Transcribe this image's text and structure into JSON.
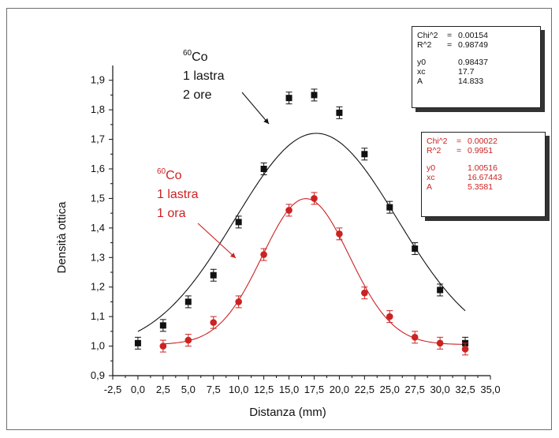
{
  "chart_data": {
    "type": "scatter",
    "xlabel": "Distanza (mm)",
    "ylabel": "Densità ottica",
    "xlim": [
      -2.5,
      35.0
    ],
    "ylim": [
      0.9,
      1.95
    ],
    "x_ticks": [
      "-2,5",
      "0,0",
      "2,5",
      "5,0",
      "7,5",
      "10,0",
      "12,5",
      "15,0",
      "17,5",
      "20,0",
      "22,5",
      "25,0",
      "27,5",
      "30,0",
      "32,5",
      "35,0"
    ],
    "x_tick_values": [
      -2.5,
      0,
      2.5,
      5,
      7.5,
      10,
      12.5,
      15,
      17.5,
      20,
      22.5,
      25,
      27.5,
      30,
      32.5,
      35
    ],
    "y_ticks": [
      "0,9",
      "1,0",
      "1,1",
      "1,2",
      "1,3",
      "1,4",
      "1,5",
      "1,6",
      "1,7",
      "1,8",
      "1,9"
    ],
    "y_tick_values": [
      0.9,
      1.0,
      1.1,
      1.2,
      1.3,
      1.4,
      1.5,
      1.6,
      1.7,
      1.8,
      1.9
    ],
    "grid": false,
    "series": [
      {
        "color": "#111111",
        "marker": "square",
        "x": [
          0,
          2.5,
          5,
          7.5,
          10,
          12.5,
          15,
          17.5,
          20,
          22.5,
          25,
          27.5,
          30,
          32.5
        ],
        "y": [
          1.01,
          1.07,
          1.15,
          1.24,
          1.42,
          1.6,
          1.84,
          1.85,
          1.79,
          1.65,
          1.47,
          1.33,
          1.19,
          1.01
        ],
        "yerr": 0.02,
        "fit": {
          "y0": 0.98437,
          "xc": 17.7,
          "A": 14.833,
          "w": 16.08
        }
      },
      {
        "color": "#cc2222",
        "marker": "circle",
        "x": [
          2.5,
          5,
          7.5,
          10,
          12.5,
          15,
          17.5,
          20,
          22.5,
          25,
          27.5,
          30,
          32.5
        ],
        "y": [
          1.0,
          1.02,
          1.08,
          1.15,
          1.31,
          1.46,
          1.5,
          1.38,
          1.18,
          1.1,
          1.03,
          1.01,
          0.99
        ],
        "yerr": 0.02,
        "fit": {
          "y0": 1.00516,
          "xc": 16.67443,
          "A": 5.3581,
          "w": 8.65
        }
      }
    ],
    "annotations": [
      {
        "sup": "60",
        "lines": [
          "Co",
          "1 lastra",
          "2 ore"
        ],
        "color": "#111111"
      },
      {
        "sup": "60",
        "lines": [
          "Co",
          "1 lastra",
          "1 ora"
        ],
        "color": "#cc2222"
      }
    ],
    "stats_boxes": [
      {
        "color": "#111111",
        "rows": [
          [
            "Chi^2",
            "=",
            "0.00154"
          ],
          [
            "R^2",
            "=",
            "0.98749"
          ]
        ],
        "params": [
          [
            "y0",
            "0.98437"
          ],
          [
            "xc",
            "17.7"
          ],
          [
            "A",
            "14.833"
          ]
        ]
      },
      {
        "color": "#cc2222",
        "rows": [
          [
            "Chi^2",
            "=",
            "0.00022"
          ],
          [
            "R^2",
            "=",
            "0.9951"
          ]
        ],
        "params": [
          [
            "y0",
            "1.00516"
          ],
          [
            "xc",
            "16.67443"
          ],
          [
            "A",
            "5.3581"
          ]
        ]
      }
    ]
  }
}
